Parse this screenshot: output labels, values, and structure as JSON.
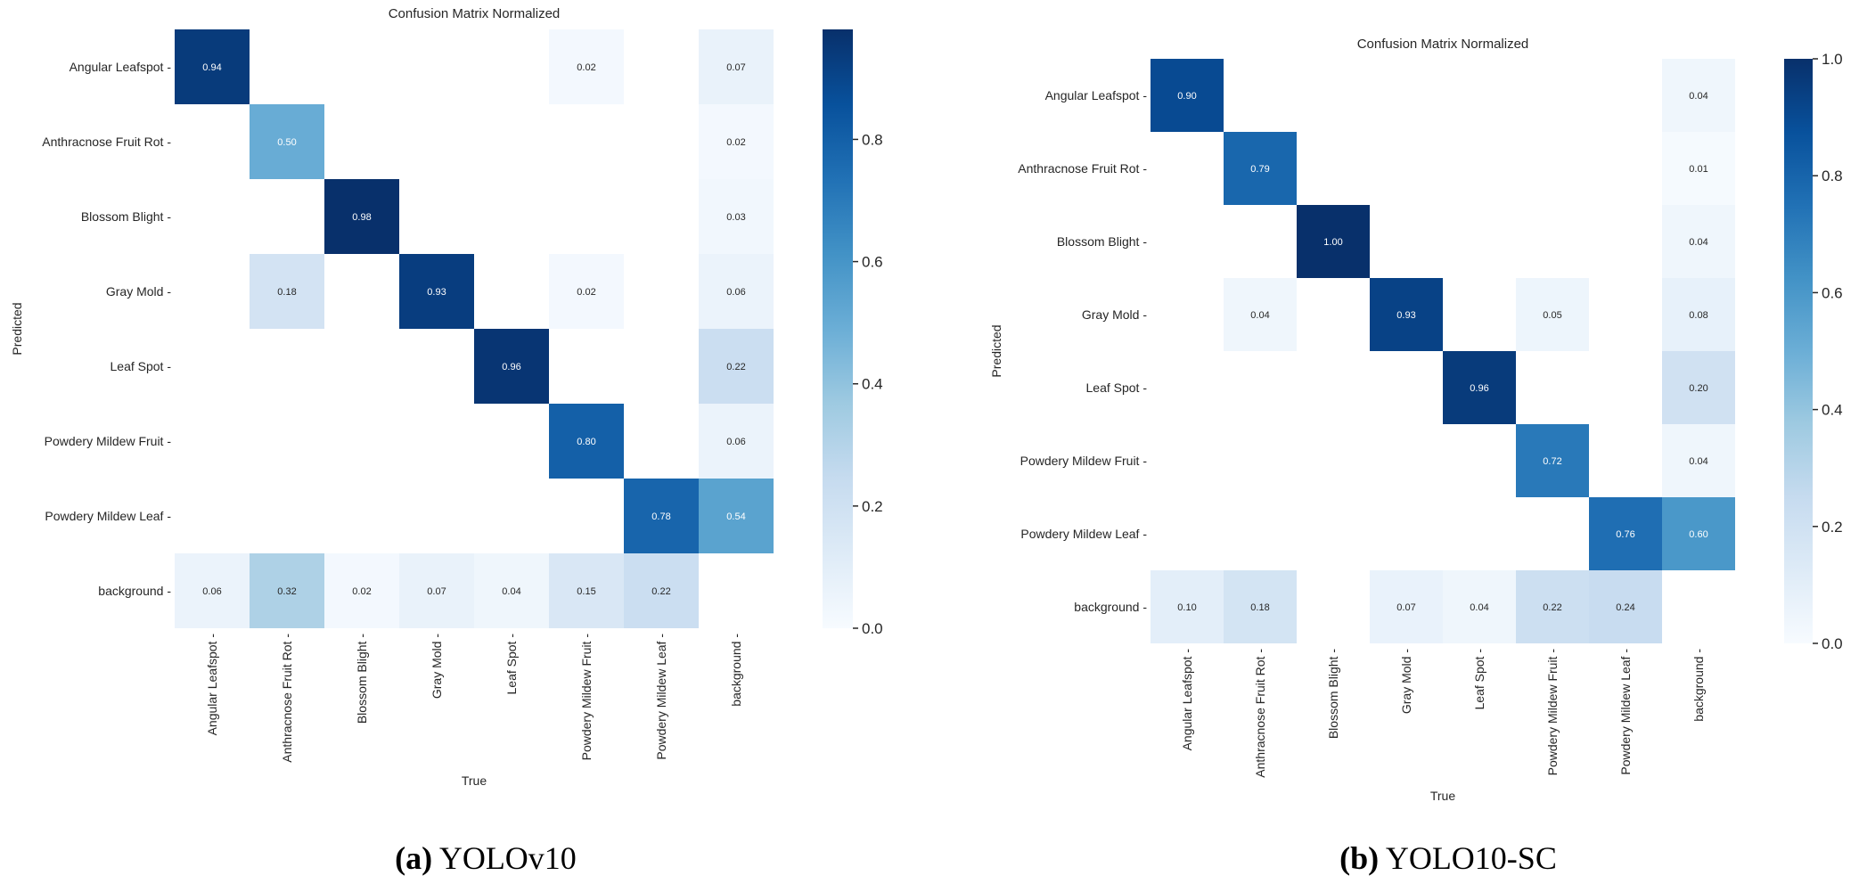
{
  "chart_data": [
    {
      "type": "heatmap",
      "title": "Confusion Matrix Normalized",
      "caption_letter": "(a)",
      "caption_text": " YOLOv10",
      "xlabel": "True",
      "ylabel": "Predicted",
      "x_categories": [
        "Angular Leafspot",
        "Anthracnose Fruit Rot",
        "Blossom Blight",
        "Gray Mold",
        "Leaf Spot",
        "Powdery Mildew Fruit",
        "Powdery Mildew Leaf",
        "background"
      ],
      "y_categories": [
        "Angular Leafspot",
        "Anthracnose Fruit Rot",
        "Blossom Blight",
        "Gray Mold",
        "Leaf Spot",
        "Powdery Mildew Fruit",
        "Powdery Mildew Leaf",
        "background"
      ],
      "values": [
        [
          0.94,
          null,
          null,
          null,
          null,
          0.02,
          null,
          0.07
        ],
        [
          null,
          0.5,
          null,
          null,
          null,
          null,
          null,
          0.02
        ],
        [
          null,
          null,
          0.98,
          null,
          null,
          null,
          null,
          0.03
        ],
        [
          null,
          0.18,
          null,
          0.93,
          null,
          0.02,
          null,
          0.06
        ],
        [
          null,
          null,
          null,
          null,
          0.96,
          null,
          null,
          0.22
        ],
        [
          null,
          null,
          null,
          null,
          null,
          0.8,
          null,
          0.06
        ],
        [
          null,
          null,
          null,
          null,
          null,
          null,
          0.78,
          0.54
        ],
        [
          0.06,
          0.32,
          0.02,
          0.07,
          0.04,
          0.15,
          0.22,
          null
        ]
      ],
      "colormap": "Blues",
      "vmin": 0.0,
      "vmax": 0.98,
      "colorbar_ticks": [
        "0.0",
        "0.2",
        "0.4",
        "0.6",
        "0.8"
      ]
    },
    {
      "type": "heatmap",
      "title": "Confusion Matrix Normalized",
      "caption_letter": "(b)",
      "caption_text": " YOLO10-SC",
      "xlabel": "True",
      "ylabel": "Predicted",
      "x_categories": [
        "Angular Leafspot",
        "Anthracnose Fruit Rot",
        "Blossom Blight",
        "Gray Mold",
        "Leaf Spot",
        "Powdery Mildew Fruit",
        "Powdery Mildew Leaf",
        "background"
      ],
      "y_categories": [
        "Angular Leafspot",
        "Anthracnose Fruit Rot",
        "Blossom Blight",
        "Gray Mold",
        "Leaf Spot",
        "Powdery Mildew Fruit",
        "Powdery Mildew Leaf",
        "background"
      ],
      "values": [
        [
          0.9,
          null,
          null,
          null,
          null,
          null,
          null,
          0.04
        ],
        [
          null,
          0.79,
          null,
          null,
          null,
          null,
          null,
          0.01
        ],
        [
          null,
          null,
          1.0,
          null,
          null,
          null,
          null,
          0.04
        ],
        [
          null,
          0.04,
          null,
          0.93,
          null,
          0.05,
          null,
          0.08
        ],
        [
          null,
          null,
          null,
          null,
          0.96,
          null,
          null,
          0.2
        ],
        [
          null,
          null,
          null,
          null,
          null,
          0.72,
          null,
          0.04
        ],
        [
          null,
          null,
          null,
          null,
          null,
          null,
          0.76,
          0.6
        ],
        [
          0.1,
          0.18,
          null,
          0.07,
          0.04,
          0.22,
          0.24,
          null
        ]
      ],
      "colormap": "Blues",
      "vmin": 0.0,
      "vmax": 1.0,
      "colorbar_ticks": [
        "0.0",
        "0.2",
        "0.4",
        "0.6",
        "0.8",
        "1.0"
      ]
    }
  ]
}
